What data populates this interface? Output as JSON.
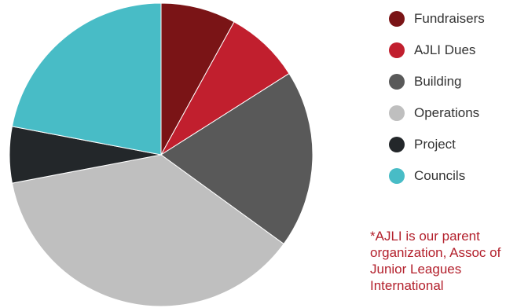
{
  "chart_data": {
    "type": "pie",
    "title": "",
    "slices": [
      {
        "label": "Fundraisers",
        "value": 8,
        "color": "#7a1416"
      },
      {
        "label": "AJLI Dues",
        "value": 8,
        "color": "#c11f2e"
      },
      {
        "label": "Building",
        "value": 19,
        "color": "#595959"
      },
      {
        "label": "Operations",
        "value": 37,
        "color": "#bfbfbf"
      },
      {
        "label": "Project",
        "value": 6,
        "color": "#23272a"
      },
      {
        "label": "Councils",
        "value": 22,
        "color": "#48bcc6"
      }
    ],
    "legend_position": "right"
  },
  "footnote": "*AJLI is our parent organization, Assoc of Junior Leagues International"
}
